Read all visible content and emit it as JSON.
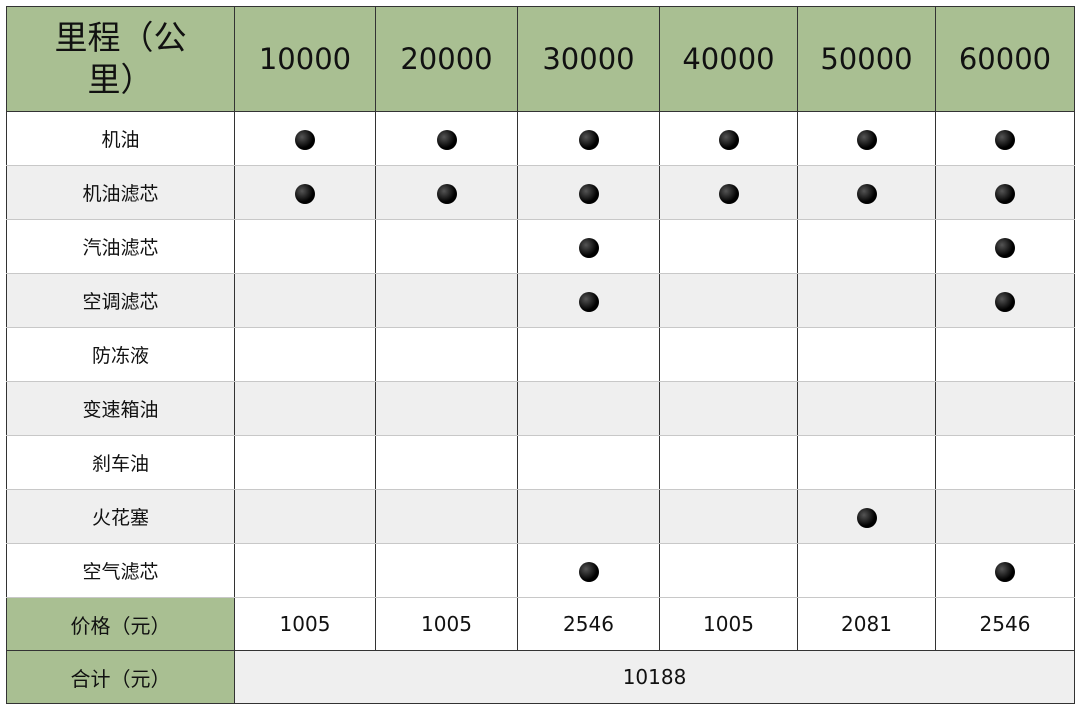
{
  "table": {
    "header": {
      "label": "里程（公里）",
      "mileages": [
        10000,
        20000,
        30000,
        40000,
        50000,
        60000
      ]
    },
    "rows": [
      {
        "item": "机油",
        "service": [
          true,
          true,
          true,
          true,
          true,
          true
        ]
      },
      {
        "item": "机油滤芯",
        "service": [
          true,
          true,
          true,
          true,
          true,
          true
        ]
      },
      {
        "item": "汽油滤芯",
        "service": [
          false,
          false,
          true,
          false,
          false,
          true
        ]
      },
      {
        "item": "空调滤芯",
        "service": [
          false,
          false,
          true,
          false,
          false,
          true
        ]
      },
      {
        "item": "防冻液",
        "service": [
          false,
          false,
          false,
          false,
          false,
          false
        ]
      },
      {
        "item": "变速箱油",
        "service": [
          false,
          false,
          false,
          false,
          false,
          false
        ]
      },
      {
        "item": "刹车油",
        "service": [
          false,
          false,
          false,
          false,
          false,
          false
        ]
      },
      {
        "item": "火花塞",
        "service": [
          false,
          false,
          false,
          false,
          true,
          false
        ]
      },
      {
        "item": "空气滤芯",
        "service": [
          false,
          false,
          true,
          false,
          false,
          true
        ]
      }
    ],
    "price": {
      "label": "价格（元）",
      "values": [
        1005,
        1005,
        2546,
        1005,
        2081,
        2546
      ]
    },
    "total": {
      "label": "合计（元）",
      "value": 10188
    }
  }
}
